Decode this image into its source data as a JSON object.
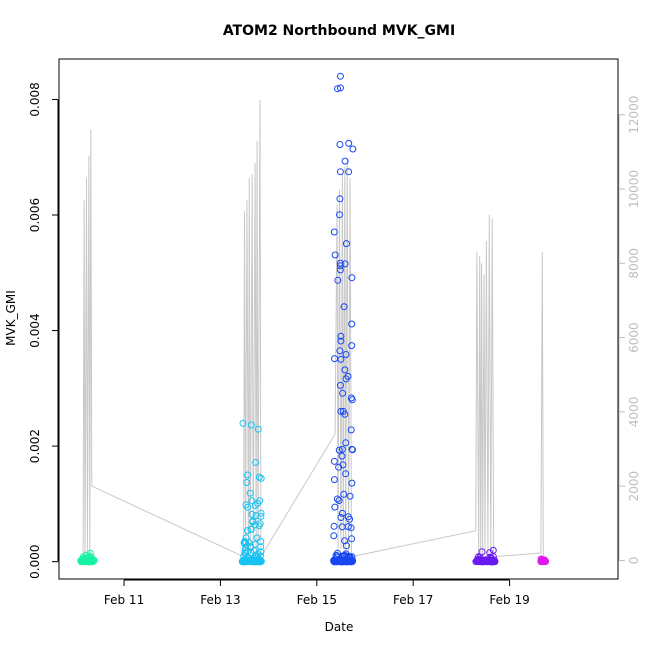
{
  "chart_data": {
    "type": "scatter",
    "title": "ATOM2 Northbound MVK_GMI",
    "xlabel": "Date",
    "ylabel": "MVK_GMI",
    "x_ticks": [
      "Feb 11",
      "Feb 13",
      "Feb 15",
      "Feb 17",
      "Feb 19"
    ],
    "x_tick_days": [
      11,
      13,
      15,
      17,
      19
    ],
    "xlim_days": [
      9.65,
      21.25
    ],
    "y_ticks": [
      "0.000",
      "0.002",
      "0.004",
      "0.006",
      "0.008"
    ],
    "y_tick_values": [
      0,
      0.002,
      0.004,
      0.006,
      0.008
    ],
    "ylim": [
      -0.0003,
      0.0087
    ],
    "y2_ticks": [
      "0",
      "2000",
      "4000",
      "6000",
      "8000",
      "10000",
      "12000"
    ],
    "y2_tick_values": [
      0,
      2000,
      4000,
      6000,
      8000,
      10000,
      12000
    ],
    "y2lim": [
      -500,
      13500
    ],
    "grid": false,
    "altitude_trace_color": "#c8c8c8",
    "altitude_trace": [
      [
        10.15,
        30
      ],
      [
        10.17,
        9700
      ],
      [
        10.19,
        50
      ],
      [
        10.22,
        10300
      ],
      [
        10.24,
        60
      ],
      [
        10.27,
        10900
      ],
      [
        10.29,
        80
      ],
      [
        10.31,
        11600
      ],
      [
        10.33,
        2000
      ],
      [
        13.48,
        100
      ],
      [
        13.5,
        9400
      ],
      [
        13.52,
        200
      ],
      [
        13.55,
        9700
      ],
      [
        13.58,
        100
      ],
      [
        13.6,
        10300
      ],
      [
        13.62,
        100
      ],
      [
        13.66,
        10400
      ],
      [
        13.68,
        100
      ],
      [
        13.72,
        10700
      ],
      [
        13.74,
        100
      ],
      [
        13.76,
        11300
      ],
      [
        13.78,
        200
      ],
      [
        13.82,
        12400
      ],
      [
        13.84,
        100
      ],
      [
        15.38,
        3400
      ],
      [
        15.42,
        9600
      ],
      [
        15.44,
        200
      ],
      [
        15.47,
        10000
      ],
      [
        15.5,
        300
      ],
      [
        15.53,
        10400
      ],
      [
        15.55,
        300
      ],
      [
        15.58,
        10600
      ],
      [
        15.6,
        200
      ],
      [
        15.63,
        10800
      ],
      [
        15.66,
        200
      ],
      [
        15.69,
        10300
      ],
      [
        15.72,
        100
      ],
      [
        18.3,
        800
      ],
      [
        18.32,
        8300
      ],
      [
        18.36,
        100
      ],
      [
        18.38,
        8200
      ],
      [
        18.4,
        100
      ],
      [
        18.42,
        8000
      ],
      [
        18.44,
        100
      ],
      [
        18.47,
        7700
      ],
      [
        18.49,
        100
      ],
      [
        18.52,
        8600
      ],
      [
        18.55,
        200
      ],
      [
        18.58,
        9300
      ],
      [
        18.61,
        100
      ],
      [
        18.64,
        9200
      ],
      [
        18.67,
        100
      ],
      [
        19.65,
        200
      ],
      [
        19.68,
        8300
      ],
      [
        19.7,
        100
      ]
    ],
    "series": [
      {
        "name": "",
        "color": "#19f2a5",
        "x_range": [
          10.1,
          10.38
        ],
        "y_max": 0.00015,
        "n": 70
      },
      {
        "name": "",
        "color": "#19c3f2",
        "x_range": [
          13.45,
          13.85
        ],
        "y_max": 0.0025,
        "n": 160
      },
      {
        "name": "",
        "color": "#1948f2",
        "x_range": [
          15.35,
          15.75
        ],
        "y_max": 0.0084,
        "n": 190
      },
      {
        "name": "",
        "color": "#6a19f2",
        "x_range": [
          18.3,
          18.7
        ],
        "y_max": 0.0002,
        "n": 80
      },
      {
        "name": "",
        "color": "#e019f2",
        "x_range": [
          19.65,
          19.75
        ],
        "y_max": 5e-05,
        "n": 30
      }
    ],
    "outliers": [
      {
        "x": 15.49,
        "y": 0.0084,
        "color": "#1948f2"
      },
      {
        "x": 15.49,
        "y": 0.0082,
        "color": "#1948f2"
      },
      {
        "x": 15.48,
        "y": 0.00722,
        "color": "#1948f2"
      },
      {
        "x": 15.49,
        "y": 0.00675,
        "color": "#1948f2"
      },
      {
        "x": 15.48,
        "y": 0.00628,
        "color": "#1948f2"
      },
      {
        "x": 15.49,
        "y": 0.00512,
        "color": "#1948f2"
      },
      {
        "x": 15.49,
        "y": 0.00505,
        "color": "#1948f2"
      },
      {
        "x": 15.5,
        "y": 0.0039,
        "color": "#1948f2"
      },
      {
        "x": 15.5,
        "y": 0.00382,
        "color": "#1948f2"
      },
      {
        "x": 15.48,
        "y": 0.00365,
        "color": "#1948f2"
      },
      {
        "x": 15.5,
        "y": 0.0035,
        "color": "#1948f2"
      },
      {
        "x": 15.49,
        "y": 0.00305,
        "color": "#1948f2"
      },
      {
        "x": 15.5,
        "y": 0.0026,
        "color": "#1948f2"
      },
      {
        "x": 15.55,
        "y": 0.0026,
        "color": "#1948f2"
      },
      {
        "x": 15.58,
        "y": 0.00255,
        "color": "#1948f2"
      }
    ]
  }
}
